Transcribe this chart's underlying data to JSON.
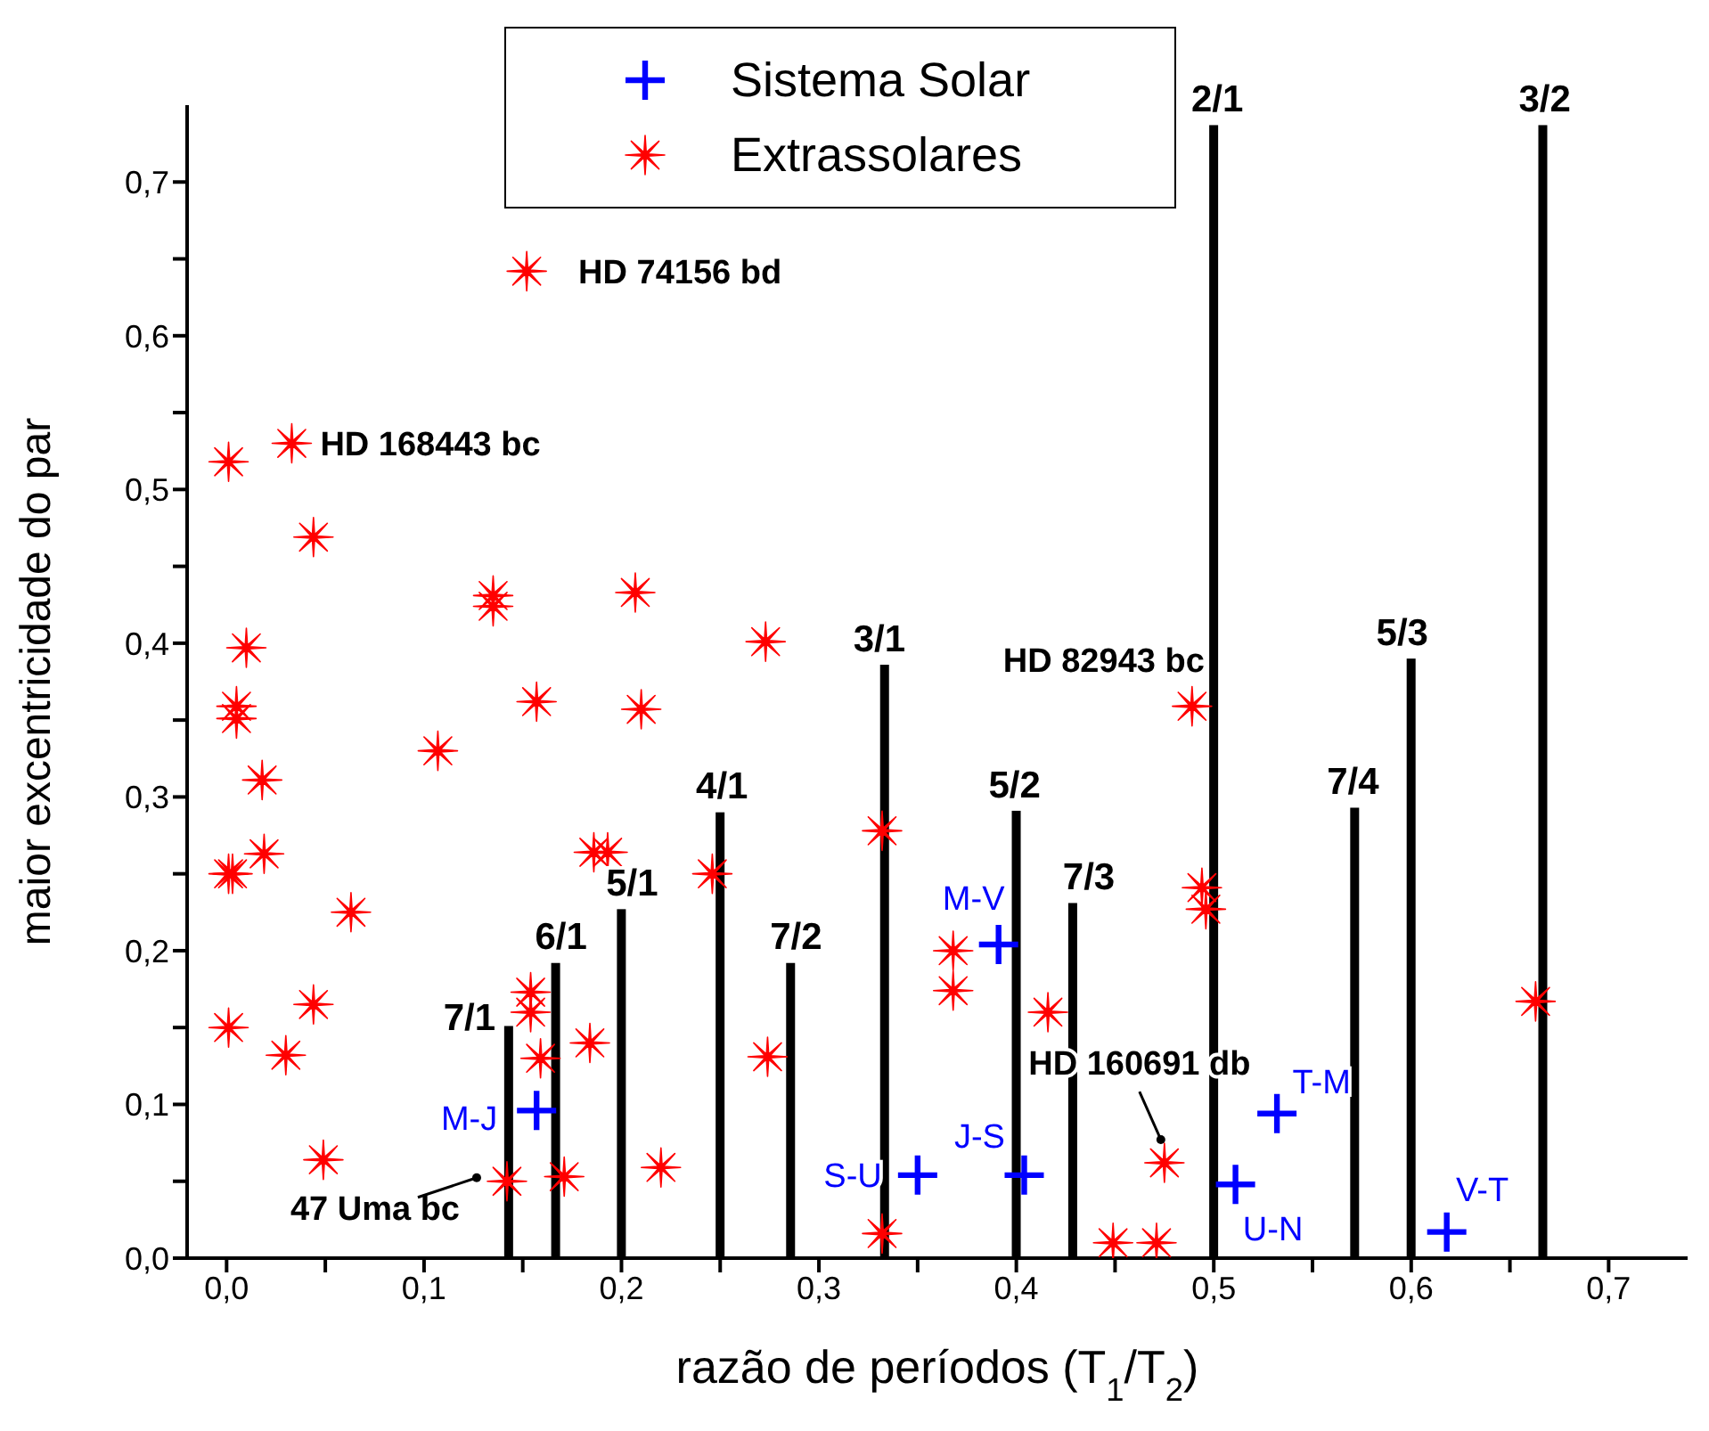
{
  "chart_data": {
    "type": "scatter",
    "xlabel": "razão de períodos (T$_{1}$/T$_{2}$)",
    "ylabel": "maior excentricidade do par",
    "xlim": [
      -0.02,
      0.74
    ],
    "ylim": [
      0,
      0.75
    ],
    "xticks": [
      {
        "value": 0,
        "label": "0,0"
      },
      {
        "value": 0.05,
        "label": null
      },
      {
        "value": 0.1,
        "label": "0,1"
      },
      {
        "value": 0.15,
        "label": null
      },
      {
        "value": 0.2,
        "label": "0,2"
      },
      {
        "value": 0.25,
        "label": null
      },
      {
        "value": 0.3,
        "label": "0,3"
      },
      {
        "value": 0.35,
        "label": null
      },
      {
        "value": 0.4,
        "label": "0,4"
      },
      {
        "value": 0.45,
        "label": null
      },
      {
        "value": 0.5,
        "label": "0,5"
      },
      {
        "value": 0.55,
        "label": null
      },
      {
        "value": 0.6,
        "label": "0,6"
      },
      {
        "value": 0.65,
        "label": null
      },
      {
        "value": 0.7,
        "label": "0,7"
      }
    ],
    "yticks": [
      {
        "value": 0,
        "label": "0,0"
      },
      {
        "value": 0.05,
        "label": null
      },
      {
        "value": 0.1,
        "label": "0,1"
      },
      {
        "value": 0.15,
        "label": null
      },
      {
        "value": 0.2,
        "label": "0,2"
      },
      {
        "value": 0.25,
        "label": null
      },
      {
        "value": 0.3,
        "label": "0,3"
      },
      {
        "value": 0.35,
        "label": null
      },
      {
        "value": 0.4,
        "label": "0,4"
      },
      {
        "value": 0.45,
        "label": null
      },
      {
        "value": 0.5,
        "label": "0,5"
      },
      {
        "value": 0.55,
        "label": null
      },
      {
        "value": 0.6,
        "label": "0,6"
      },
      {
        "value": 0.65,
        "label": null
      },
      {
        "value": 0.7,
        "label": "0,7"
      }
    ],
    "legend": "top",
    "series": [
      {
        "type": "bar",
        "color": "#000000",
        "x": [
          0.1429,
          0.1667,
          0.2,
          0.25,
          0.2857,
          0.3333,
          0.4,
          0.4286,
          0.5,
          0.5714,
          0.6,
          0.6667
        ],
        "values": [
          0.151,
          0.192,
          0.227,
          0.29,
          0.192,
          0.386,
          0.291,
          0.231,
          0.737,
          0.293,
          0.39,
          0.737
        ]
      },
      {
        "name": "Sistema Solar",
        "color": "#0000ff",
        "marker": "cross",
        "x": [
          0.157,
          0.391,
          0.35,
          0.404,
          0.532,
          0.511,
          0.618
        ],
        "values": [
          0.096,
          0.204,
          0.054,
          0.054,
          0.094,
          0.048,
          0.017
        ]
      },
      {
        "name": "Extrassolares",
        "color": "#ff0000",
        "marker": "star",
        "x": [
          0.152,
          0.033,
          0.001,
          0.044,
          0.135,
          0.135,
          0.207,
          0.273,
          0.01,
          0.005,
          0.005,
          0.157,
          0.21,
          0.107,
          0.018,
          0.001,
          0.003,
          0.019,
          0.063,
          0.186,
          0.193,
          0.246,
          0.332,
          0.494,
          0.496,
          0.489,
          0.368,
          0.368,
          0.416,
          0.274,
          0.332,
          0.449,
          0.471,
          0.475,
          0.663,
          0.001,
          0.03,
          0.044,
          0.049,
          0.154,
          0.154,
          0.159,
          0.184,
          0.142,
          0.171,
          0.22
        ],
        "values": [
          0.642,
          0.53,
          0.518,
          0.469,
          0.431,
          0.424,
          0.433,
          0.401,
          0.397,
          0.359,
          0.351,
          0.362,
          0.357,
          0.33,
          0.311,
          0.25,
          0.25,
          0.263,
          0.225,
          0.264,
          0.264,
          0.25,
          0.278,
          0.241,
          0.227,
          0.359,
          0.2,
          0.174,
          0.16,
          0.131,
          0.016,
          0.01,
          0.01,
          0.062,
          0.167,
          0.15,
          0.132,
          0.165,
          0.064,
          0.173,
          0.16,
          0.13,
          0.14,
          0.05,
          0.053,
          0.059
        ]
      }
    ],
    "annotations": [
      {
        "text": "HD 74156 bd",
        "x": 0.152,
        "y": 0.642
      },
      {
        "text": "HD 168443 bc",
        "x": 0.033,
        "y": 0.53
      },
      {
        "text": "HD 82943 bc",
        "x": 0.489,
        "y": 0.359
      },
      {
        "text": "HD 160691 db",
        "x": 0.475,
        "y": 0.062
      },
      {
        "text": "47 Uma bc",
        "x": 0.142,
        "y": 0.05
      },
      {
        "text": "M-J",
        "x": 0.157,
        "y": 0.096
      },
      {
        "text": "M-V",
        "x": 0.391,
        "y": 0.204
      },
      {
        "text": "S-U",
        "x": 0.35,
        "y": 0.054
      },
      {
        "text": "J-S",
        "x": 0.404,
        "y": 0.054
      },
      {
        "text": "T-M",
        "x": 0.532,
        "y": 0.094
      },
      {
        "text": "U-N",
        "x": 0.511,
        "y": 0.048
      },
      {
        "text": "V-T",
        "x": 0.618,
        "y": 0.017
      },
      {
        "text": "7/1",
        "x": 0.1429,
        "y": 0.151
      },
      {
        "text": "6/1",
        "x": 0.1667,
        "y": 0.192
      },
      {
        "text": "5/1",
        "x": 0.2,
        "y": 0.227
      },
      {
        "text": "4/1",
        "x": 0.25,
        "y": 0.29
      },
      {
        "text": "7/2",
        "x": 0.2857,
        "y": 0.192
      },
      {
        "text": "3/1",
        "x": 0.3333,
        "y": 0.386
      },
      {
        "text": "5/2",
        "x": 0.4,
        "y": 0.291
      },
      {
        "text": "7/3",
        "x": 0.4286,
        "y": 0.231
      },
      {
        "text": "2/1",
        "x": 0.5,
        "y": 0.737
      },
      {
        "text": "7/4",
        "x": 0.5714,
        "y": 0.293
      },
      {
        "text": "5/3",
        "x": 0.6,
        "y": 0.39
      },
      {
        "text": "3/2",
        "x": 0.6667,
        "y": 0.737
      }
    ]
  }
}
